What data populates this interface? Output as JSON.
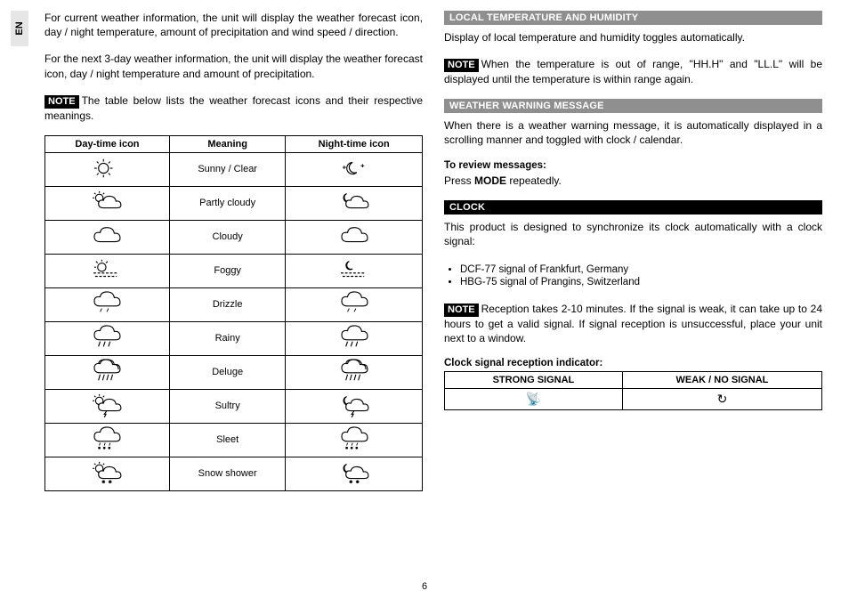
{
  "side_tab": "EN",
  "page_number": "6",
  "left": {
    "p1": "For current weather information, the unit will display the weather forecast icon, day / night temperature, amount of precipitation and wind speed / direction.",
    "p2": "For the next 3-day weather information, the unit will display the weather forecast icon, day / night temperature and amount of precipitation.",
    "note_label": "NOTE",
    "note_text": "The table below lists the weather forecast icons and their respective meanings.",
    "table": {
      "headers": [
        "Day-time icon",
        "Meaning",
        "Night-time icon"
      ],
      "rows": [
        {
          "meaning": "Sunny / Clear",
          "day": "sun",
          "night": "moon-sparkle"
        },
        {
          "meaning": "Partly cloudy",
          "day": "sun-cloud",
          "night": "moon-cloud"
        },
        {
          "meaning": "Cloudy",
          "day": "cloud",
          "night": "cloud"
        },
        {
          "meaning": "Foggy",
          "day": "sun-fog",
          "night": "moon-fog"
        },
        {
          "meaning": "Drizzle",
          "day": "cloud-drizzle",
          "night": "cloud-drizzle"
        },
        {
          "meaning": "Rainy",
          "day": "cloud-rain",
          "night": "cloud-rain"
        },
        {
          "meaning": "Deluge",
          "day": "cloud-deluge",
          "night": "cloud-deluge"
        },
        {
          "meaning": "Sultry",
          "day": "sun-cloud-bolt",
          "night": "moon-cloud-bolt"
        },
        {
          "meaning": "Sleet",
          "day": "cloud-sleet",
          "night": "cloud-sleet"
        },
        {
          "meaning": "Snow shower",
          "day": "sun-cloud-snow",
          "night": "moon-cloud-snow"
        }
      ]
    }
  },
  "right": {
    "s1_header": "LOCAL TEMPERATURE AND HUMIDITY",
    "s1_p1": "Display of local temperature and humidity toggles automatically.",
    "s1_note_label": "NOTE",
    "s1_note_text": "When the temperature is out of range, \"HH.H\" and \"LL.L\" will be displayed until the temperature is within range again.",
    "s2_header": "WEATHER WARNING MESSAGE",
    "s2_p1": "When there is a weather warning message, it is automatically displayed in a scrolling manner and toggled with clock / calendar.",
    "s2_sub": "To review messages:",
    "s2_p2a": "Press ",
    "s2_p2b": "MODE",
    "s2_p2c": " repeatedly.",
    "s3_header": "CLOCK",
    "s3_p1": "This product is designed to synchronize its clock automatically with a clock signal:",
    "s3_bullets": [
      "DCF-77 signal of Frankfurt, Germany",
      "HBG-75 signal of Prangins, Switzerland"
    ],
    "s3_note_label": "NOTE",
    "s3_note_text": "Reception takes 2-10 minutes. If the signal is weak, it can take up to 24 hours to get a valid signal. If signal reception is unsuccessful, place your unit next to a window.",
    "s4_sub": "Clock signal reception indicator:",
    "signal_table": {
      "headers": [
        "STRONG SIGNAL",
        "WEAK / NO SIGNAL"
      ],
      "strong_glyph": "📡",
      "weak_glyph": "↻"
    }
  },
  "colors": {
    "side_tab_bg": "#e6e6e6",
    "gray_header": "#8f8f8f",
    "black": "#000000",
    "white": "#ffffff"
  }
}
